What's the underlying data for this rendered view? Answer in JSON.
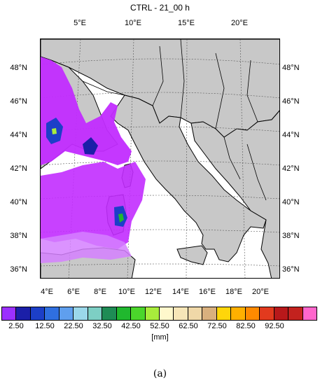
{
  "title": "CTRL - 21_00 h",
  "top_ticks": [
    "5°E",
    "10°E",
    "15°E",
    "20°E"
  ],
  "bottom_ticks": [
    "4°E",
    "6°E",
    "8°E",
    "10°E",
    "12°E",
    "14°E",
    "16°E",
    "18°E",
    "20°E"
  ],
  "lat_ticks": [
    "48°N",
    "46°N",
    "44°N",
    "42°N",
    "40°N",
    "38°N",
    "36°N"
  ],
  "colorbar": {
    "colors": [
      "#9b30ff",
      "#1b1fa8",
      "#1c3fc8",
      "#2f6fe0",
      "#5f9fee",
      "#9bd8ea",
      "#7dcfc4",
      "#1e8c55",
      "#20b82e",
      "#4bd62b",
      "#a8ec3c",
      "#fff8cc",
      "#f7e6b8",
      "#f0d8a8",
      "#d9b07e",
      "#ffd60a",
      "#ffb000",
      "#ff8a00",
      "#e23a1e",
      "#b8181a",
      "#c3221e",
      "#ff66cc"
    ],
    "labels": [
      "2.50",
      "12.50",
      "22.50",
      "32.50",
      "42.50",
      "52.50",
      "62.50",
      "72.50",
      "82.50",
      "92.50"
    ],
    "unit": "[mm]"
  },
  "panel_label": "(a)",
  "colors": {
    "land": "#c8c8c8",
    "sea": "#ffffff",
    "precip_light": "#c22cff",
    "precip_mid": "#1c3fc8"
  }
}
